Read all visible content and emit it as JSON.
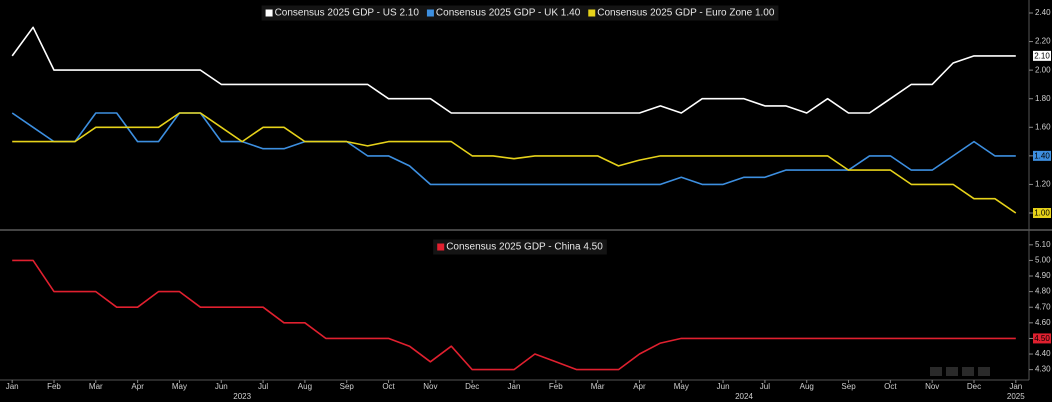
{
  "chart_data": [
    {
      "type": "line",
      "x": [
        0,
        0.5,
        1,
        1.5,
        2,
        2.5,
        3,
        3.5,
        4,
        4.5,
        5,
        5.5,
        6,
        6.5,
        7,
        7.5,
        8,
        8.5,
        9,
        9.5,
        10,
        10.5,
        11,
        11.5,
        12,
        12.5,
        13,
        13.5,
        14,
        14.5,
        15,
        15.5,
        16,
        16.5,
        17,
        17.5,
        18,
        18.5,
        19,
        19.5,
        20,
        20.5,
        21,
        21.5,
        22,
        22.5,
        23,
        23.5,
        24
      ],
      "xlim": [
        -0.1,
        24.1
      ],
      "ylim": [
        0.93,
        2.47
      ],
      "yticks": [
        {
          "value": 1.0,
          "label": "1.00"
        },
        {
          "value": 1.2,
          "label": "1.20"
        },
        {
          "value": 1.4,
          "label": "1.40"
        },
        {
          "value": 1.6,
          "label": "1.60"
        },
        {
          "value": 1.8,
          "label": "1.80"
        },
        {
          "value": 2.0,
          "label": "2.00"
        },
        {
          "value": 2.2,
          "label": "2.20"
        },
        {
          "value": 2.4,
          "label": "2.40"
        }
      ],
      "grid": false,
      "series": [
        {
          "name": "Consensus 2025 GDP - US 2.10",
          "color": "#ffffff",
          "last_label": "2.10",
          "values": [
            2.1,
            2.3,
            2.0,
            2.0,
            2.0,
            2.0,
            2.0,
            2.0,
            2.0,
            2.0,
            1.9,
            1.9,
            1.9,
            1.9,
            1.9,
            1.9,
            1.9,
            1.9,
            1.8,
            1.8,
            1.8,
            1.7,
            1.7,
            1.7,
            1.7,
            1.7,
            1.7,
            1.7,
            1.7,
            1.7,
            1.7,
            1.75,
            1.7,
            1.8,
            1.8,
            1.8,
            1.75,
            1.75,
            1.7,
            1.8,
            1.7,
            1.7,
            1.8,
            1.9,
            1.9,
            2.05,
            2.1,
            2.1,
            2.1
          ]
        },
        {
          "name": "Consensus 2025 GDP - UK 1.40",
          "color": "#3d8fe0",
          "last_label": "1.40",
          "values": [
            1.7,
            1.6,
            1.5,
            1.5,
            1.7,
            1.7,
            1.5,
            1.5,
            1.7,
            1.7,
            1.5,
            1.5,
            1.45,
            1.45,
            1.5,
            1.5,
            1.5,
            1.4,
            1.4,
            1.33,
            1.2,
            1.2,
            1.2,
            1.2,
            1.2,
            1.2,
            1.2,
            1.2,
            1.2,
            1.2,
            1.2,
            1.2,
            1.25,
            1.2,
            1.2,
            1.25,
            1.25,
            1.3,
            1.3,
            1.3,
            1.3,
            1.4,
            1.4,
            1.3,
            1.3,
            1.4,
            1.5,
            1.4,
            1.4
          ]
        },
        {
          "name": "Consensus 2025 GDP - Euro Zone 1.00",
          "color": "#e6d21a",
          "last_label": "1.00",
          "values": [
            1.5,
            1.5,
            1.5,
            1.5,
            1.6,
            1.6,
            1.6,
            1.6,
            1.7,
            1.7,
            1.6,
            1.5,
            1.6,
            1.6,
            1.5,
            1.5,
            1.5,
            1.47,
            1.5,
            1.5,
            1.5,
            1.5,
            1.4,
            1.4,
            1.38,
            1.4,
            1.4,
            1.4,
            1.4,
            1.33,
            1.37,
            1.4,
            1.4,
            1.4,
            1.4,
            1.4,
            1.4,
            1.4,
            1.4,
            1.4,
            1.3,
            1.3,
            1.3,
            1.2,
            1.2,
            1.2,
            1.1,
            1.1,
            1.0
          ]
        }
      ]
    },
    {
      "type": "line",
      "x": [
        0,
        0.5,
        1,
        1.5,
        2,
        2.5,
        3,
        3.5,
        4,
        4.5,
        5,
        5.5,
        6,
        6.5,
        7,
        7.5,
        8,
        8.5,
        9,
        9.5,
        10,
        10.5,
        11,
        11.5,
        12,
        12.5,
        13,
        13.5,
        14,
        14.5,
        15,
        15.5,
        16,
        16.5,
        17,
        17.5,
        18,
        18.5,
        19,
        19.5,
        20,
        20.5,
        21,
        21.5,
        22,
        22.5,
        23,
        23.5,
        24
      ],
      "xlim": [
        -0.1,
        24.1
      ],
      "xticks": [
        {
          "value": 0,
          "label": "Jan"
        },
        {
          "value": 1,
          "label": "Feb"
        },
        {
          "value": 2,
          "label": "Mar"
        },
        {
          "value": 3,
          "label": "Apr"
        },
        {
          "value": 4,
          "label": "May"
        },
        {
          "value": 5,
          "label": "Jun"
        },
        {
          "value": 6,
          "label": "Jul"
        },
        {
          "value": 7,
          "label": "Aug"
        },
        {
          "value": 8,
          "label": "Sep"
        },
        {
          "value": 9,
          "label": "Oct"
        },
        {
          "value": 10,
          "label": "Nov"
        },
        {
          "value": 11,
          "label": "Dec"
        },
        {
          "value": 12,
          "label": "Jan"
        },
        {
          "value": 13,
          "label": "Feb"
        },
        {
          "value": 14,
          "label": "Mar"
        },
        {
          "value": 15,
          "label": "Apr"
        },
        {
          "value": 16,
          "label": "May"
        },
        {
          "value": 17,
          "label": "Jun"
        },
        {
          "value": 18,
          "label": "Jul"
        },
        {
          "value": 19,
          "label": "Aug"
        },
        {
          "value": 20,
          "label": "Sep"
        },
        {
          "value": 21,
          "label": "Oct"
        },
        {
          "value": 22,
          "label": "Nov"
        },
        {
          "value": 23,
          "label": "Dec"
        },
        {
          "value": 24,
          "label": "Jan"
        }
      ],
      "xyears": [
        {
          "value": 5.5,
          "label": "2023"
        },
        {
          "value": 17.5,
          "label": "2024"
        },
        {
          "value": 24,
          "label": "2025"
        }
      ],
      "ylim": [
        4.24,
        5.15
      ],
      "yticks": [
        {
          "value": 4.3,
          "label": "4.30"
        },
        {
          "value": 4.4,
          "label": "4.40"
        },
        {
          "value": 4.5,
          "label": "4.50"
        },
        {
          "value": 4.6,
          "label": "4.60"
        },
        {
          "value": 4.7,
          "label": "4.70"
        },
        {
          "value": 4.8,
          "label": "4.80"
        },
        {
          "value": 4.9,
          "label": "4.90"
        },
        {
          "value": 5.0,
          "label": "5.00"
        },
        {
          "value": 5.1,
          "label": "5.10"
        }
      ],
      "grid": false,
      "series": [
        {
          "name": "Consensus 2025 GDP - China 4.50",
          "color": "#e0202f",
          "last_label": "4.50",
          "values": [
            5.0,
            5.0,
            4.8,
            4.8,
            4.8,
            4.7,
            4.7,
            4.8,
            4.8,
            4.7,
            4.7,
            4.7,
            4.7,
            4.6,
            4.6,
            4.5,
            4.5,
            4.5,
            4.5,
            4.45,
            4.35,
            4.45,
            4.3,
            4.3,
            4.3,
            4.4,
            4.35,
            4.3,
            4.3,
            4.3,
            4.4,
            4.47,
            4.5,
            4.5,
            4.5,
            4.5,
            4.5,
            4.5,
            4.5,
            4.5,
            4.5,
            4.5,
            4.5,
            4.5,
            4.5,
            4.5,
            4.5,
            4.5,
            4.5
          ]
        }
      ]
    }
  ]
}
